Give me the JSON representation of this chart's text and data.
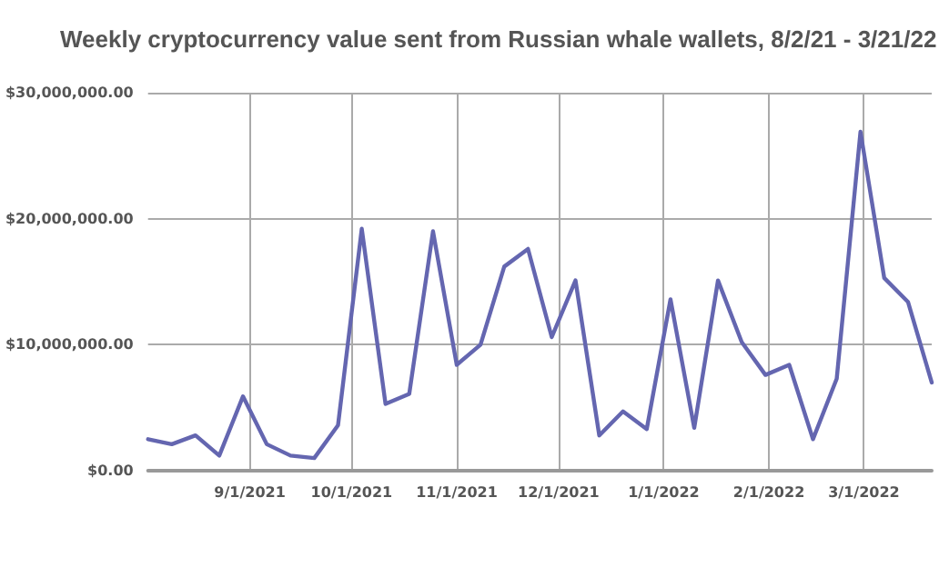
{
  "chart_data": {
    "type": "line",
    "title": "Weekly cryptocurrency value sent from Russian whale wallets, 8/2/21 - 3/21/22",
    "x": [
      "2021-08-02",
      "2021-08-09",
      "2021-08-16",
      "2021-08-23",
      "2021-08-30",
      "2021-09-06",
      "2021-09-13",
      "2021-09-20",
      "2021-09-27",
      "2021-10-04",
      "2021-10-11",
      "2021-10-18",
      "2021-10-25",
      "2021-11-01",
      "2021-11-08",
      "2021-11-15",
      "2021-11-22",
      "2021-11-29",
      "2021-12-06",
      "2021-12-13",
      "2021-12-20",
      "2021-12-27",
      "2022-01-03",
      "2022-01-10",
      "2022-01-17",
      "2022-01-24",
      "2022-01-31",
      "2022-02-07",
      "2022-02-14",
      "2022-02-21",
      "2022-02-28",
      "2022-03-07",
      "2022-03-14",
      "2022-03-21"
    ],
    "series": [
      {
        "color": "#6466b0",
        "values": [
          2500000,
          2100000,
          2800000,
          1200000,
          5900000,
          2100000,
          1200000,
          1000000,
          3600000,
          19200000,
          5300000,
          6100000,
          19000000,
          8400000,
          10000000,
          16200000,
          17600000,
          10600000,
          15100000,
          2800000,
          4700000,
          3300000,
          13600000,
          3400000,
          15100000,
          10200000,
          7600000,
          8400000,
          2500000,
          7300000,
          26900000,
          15300000,
          13400000,
          7000000
        ]
      }
    ],
    "xlim": [
      "2021-08-02",
      "2022-03-21"
    ],
    "xticks": [
      {
        "value": "2021-09-01",
        "label": "9/1/2021"
      },
      {
        "value": "2021-10-01",
        "label": "10/1/2021"
      },
      {
        "value": "2021-11-01",
        "label": "11/1/2021"
      },
      {
        "value": "2021-12-01",
        "label": "12/1/2021"
      },
      {
        "value": "2022-01-01",
        "label": "1/1/2022"
      },
      {
        "value": "2022-02-01",
        "label": "2/1/2022"
      },
      {
        "value": "2022-03-01",
        "label": "3/1/2022"
      }
    ],
    "ylim": [
      0,
      30000000
    ],
    "yticks": [
      {
        "value": 0,
        "label": "$0.00"
      },
      {
        "value": 10000000,
        "label": "$10,000,000.00"
      },
      {
        "value": 20000000,
        "label": "$20,000,000.00"
      },
      {
        "value": 30000000,
        "label": "$30,000,000.00"
      }
    ],
    "grid": true,
    "marker": "none",
    "line_style": "solid"
  }
}
